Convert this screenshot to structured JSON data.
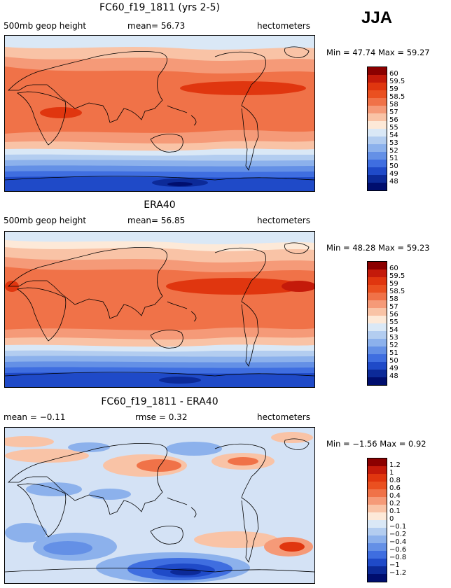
{
  "season": "JJA",
  "panels": [
    {
      "title": "FC60_f19_1811 (yrs 2-5)",
      "left_label": "500mb geop height",
      "mid_label": "mean= 56.73",
      "right_label": "hectometers",
      "min_label": "Min =",
      "min_value": "47.74",
      "max_label": "Max =",
      "max_value": "59.27",
      "colorbar_labels": [
        "60",
        "59.5",
        "59",
        "58.5",
        "58",
        "57",
        "56",
        "55",
        "54",
        "53",
        "52",
        "51",
        "50",
        "49",
        "48"
      ]
    },
    {
      "title": "ERA40",
      "left_label": "500mb geop height",
      "mid_label": "mean= 56.85",
      "right_label": "hectometers",
      "min_label": "Min =",
      "min_value": "48.28",
      "max_label": "Max =",
      "max_value": "59.23",
      "colorbar_labels": [
        "60",
        "59.5",
        "59",
        "58.5",
        "58",
        "57",
        "56",
        "55",
        "54",
        "53",
        "52",
        "51",
        "50",
        "49",
        "48"
      ]
    },
    {
      "title": "FC60_f19_1811 - ERA40",
      "left_label": "mean = −0.11",
      "mid_label": "rmse = 0.32",
      "right_label": "hectometers",
      "min_label": "Min =",
      "min_value": "−1.56",
      "max_label": "Max =",
      "max_value": "0.92",
      "colorbar_labels": [
        "1.2",
        "1",
        "0.8",
        "0.6",
        "0.4",
        "0.2",
        "0.1",
        "0",
        "−0.1",
        "−0.2",
        "−0.4",
        "−0.6",
        "−0.8",
        "−1",
        "−1.2"
      ]
    }
  ],
  "colors": {
    "scale": [
      "#8b0000",
      "#c41a0a",
      "#e0360f",
      "#ea5020",
      "#f07248",
      "#f59a78",
      "#f9c3a6",
      "#fde9d8",
      "#dae8f6",
      "#b3cdf0",
      "#8cb1ec",
      "#6490e6",
      "#3f6ee0",
      "#1f4ac8",
      "#0c2a98",
      "#000e6e"
    ],
    "diff_neutral": "#d4e2f5"
  }
}
